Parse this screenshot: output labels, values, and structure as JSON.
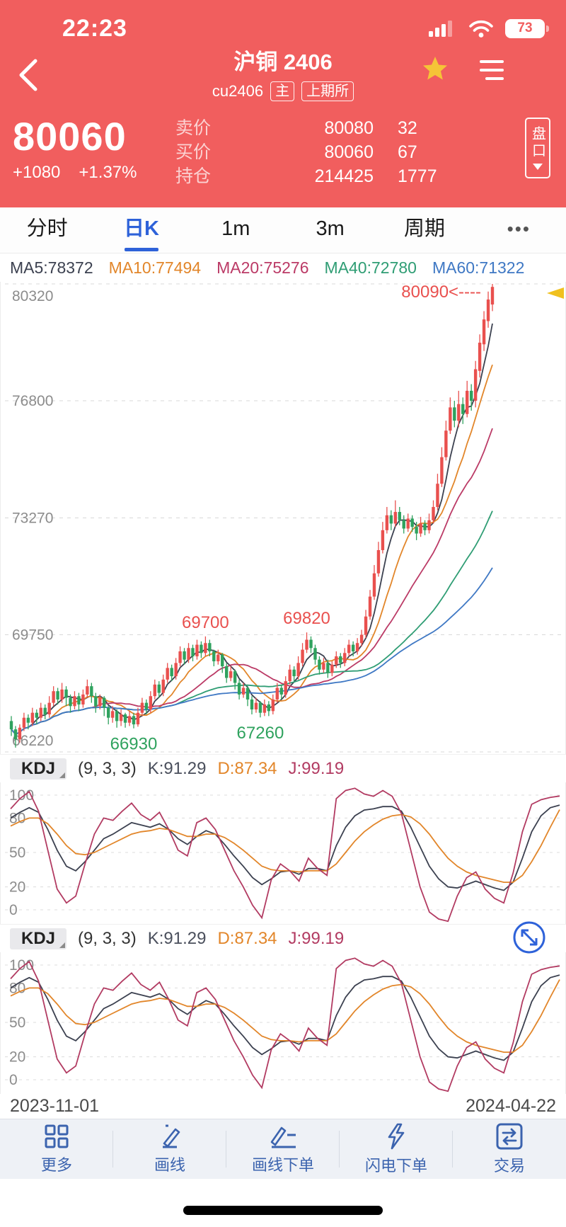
{
  "colors": {
    "header_red": "#f15e5e",
    "up": "#e9504e",
    "down": "#2fa25e",
    "accent_blue": "#2e62d9",
    "toolbar_blue": "#3b63ae",
    "axis_gray": "#8c8c8c",
    "marker_yellow": "#f0c11f"
  },
  "status_bar": {
    "time": "22:23",
    "battery": "73"
  },
  "nav": {
    "title": "沪铜 2406",
    "code": "cu2406",
    "badge_main": "主",
    "badge_exchange": "上期所"
  },
  "quote": {
    "last": "80060",
    "change": "+1080",
    "change_pct": "+1.37%",
    "rows": [
      {
        "label": "卖价",
        "value": "80080",
        "qty": "32"
      },
      {
        "label": "买价",
        "value": "80060",
        "qty": "67"
      },
      {
        "label": "持仓",
        "value": "214425",
        "qty": "1777"
      }
    ],
    "panel_button": "盘口"
  },
  "tabs": {
    "items": [
      "分时",
      "日K",
      "1m",
      "3m",
      "周期",
      "•••"
    ],
    "active_index": 1
  },
  "ma_legend": [
    {
      "label": "MA5:78372",
      "color": "#3c4150"
    },
    {
      "label": "MA10:77494",
      "color": "#e2862a"
    },
    {
      "label": "MA20:75276",
      "color": "#bb3a66"
    },
    {
      "label": "MA40:72780",
      "color": "#2f9d74"
    },
    {
      "label": "MA60:71322",
      "color": "#3f78c4"
    }
  ],
  "kdj_header": {
    "name": "KDJ",
    "params": "(9, 3, 3)",
    "k": "K:91.29",
    "d": "D:87.34",
    "j": "J:99.19"
  },
  "dates": {
    "start": "2023-11-01",
    "end": "2024-04-22"
  },
  "toolbar": {
    "items": [
      "更多",
      "画线",
      "画线下单",
      "闪电下单",
      "交易"
    ]
  },
  "chart_data": [
    {
      "type": "candlestick",
      "title": "沪铜2406 日K",
      "x_range": [
        "2023-11-01",
        "2024-04-22"
      ],
      "ylim": [
        66220,
        80320
      ],
      "yticks": [
        80320,
        76800,
        73270,
        69750,
        66220
      ],
      "grid": true,
      "up_color": "#e9504e",
      "down_color": "#2fa25e",
      "ma_windows": [
        5,
        10,
        20,
        40,
        60
      ],
      "ma_colors": [
        "#3c4150",
        "#e2862a",
        "#bb3a66",
        "#2f9d74",
        "#3f78c4"
      ],
      "annotations": [
        {
          "text": "80090<----",
          "index": 113,
          "value": 80090,
          "color": "#e9504e",
          "placement": "callout-left"
        },
        {
          "text": "69700",
          "index": 46,
          "value": 69700,
          "color": "#e9504e",
          "placement": "above"
        },
        {
          "text": "69820",
          "index": 70,
          "value": 69820,
          "color": "#e9504e",
          "placement": "above"
        },
        {
          "text": "66930",
          "index": 29,
          "value": 66930,
          "color": "#2fa25e",
          "placement": "below"
        },
        {
          "text": "67260",
          "index": 59,
          "value": 67260,
          "color": "#2fa25e",
          "placement": "below"
        }
      ],
      "candles": [
        [
          67150,
          66900,
          66700,
          67300
        ],
        [
          66900,
          66600,
          66350,
          67000
        ],
        [
          66600,
          66950,
          66500,
          67050
        ],
        [
          66950,
          67250,
          66850,
          67400
        ],
        [
          67250,
          67100,
          66900,
          67350
        ],
        [
          67100,
          67400,
          67000,
          67550
        ],
        [
          67400,
          67250,
          67050,
          67500
        ],
        [
          67250,
          67550,
          67150,
          67700
        ],
        [
          67550,
          67350,
          67200,
          67650
        ],
        [
          67350,
          67700,
          67250,
          67900
        ],
        [
          67700,
          68050,
          67600,
          68200
        ],
        [
          68050,
          67800,
          67650,
          68150
        ],
        [
          67800,
          68100,
          67700,
          68300
        ],
        [
          68100,
          67850,
          67600,
          68200
        ],
        [
          67850,
          67600,
          67400,
          67950
        ],
        [
          67600,
          67900,
          67500,
          68050
        ],
        [
          67900,
          67650,
          67450,
          68000
        ],
        [
          67650,
          67950,
          67550,
          68100
        ],
        [
          67950,
          68200,
          67850,
          68400
        ],
        [
          68200,
          67900,
          67700,
          68300
        ],
        [
          67900,
          67600,
          67400,
          68000
        ],
        [
          67600,
          67850,
          67500,
          67950
        ],
        [
          67850,
          67550,
          67300,
          67900
        ],
        [
          67550,
          67250,
          67050,
          67600
        ],
        [
          67250,
          67450,
          67100,
          67600
        ],
        [
          67450,
          67150,
          66950,
          67500
        ],
        [
          67150,
          67350,
          67000,
          67500
        ],
        [
          67350,
          67100,
          66950,
          67400
        ],
        [
          67100,
          67300,
          67000,
          67450
        ],
        [
          67300,
          67050,
          66930,
          67400
        ],
        [
          67050,
          67400,
          66980,
          67550
        ],
        [
          67400,
          67700,
          67300,
          67850
        ],
        [
          67700,
          67500,
          67350,
          67800
        ],
        [
          67500,
          67900,
          67400,
          68050
        ],
        [
          67900,
          68250,
          67800,
          68400
        ],
        [
          68250,
          68000,
          67850,
          68350
        ],
        [
          68000,
          68400,
          67900,
          68550
        ],
        [
          68400,
          68750,
          68300,
          68900
        ],
        [
          68750,
          68500,
          68350,
          68850
        ],
        [
          68500,
          68900,
          68400,
          69050
        ],
        [
          68900,
          69250,
          68800,
          69400
        ],
        [
          69250,
          69000,
          68850,
          69350
        ],
        [
          69000,
          69350,
          68900,
          69500
        ],
        [
          69350,
          69100,
          68950,
          69450
        ],
        [
          69100,
          69450,
          69000,
          69600
        ],
        [
          69450,
          69200,
          69050,
          69550
        ],
        [
          69200,
          69500,
          69100,
          69700
        ],
        [
          69500,
          69250,
          69100,
          69600
        ],
        [
          69250,
          68950,
          68800,
          69300
        ],
        [
          68950,
          69150,
          68850,
          69300
        ],
        [
          69150,
          68800,
          68600,
          69200
        ],
        [
          68800,
          68450,
          68300,
          68900
        ],
        [
          68450,
          68650,
          68350,
          68800
        ],
        [
          68650,
          68300,
          68100,
          68700
        ],
        [
          68300,
          67950,
          67800,
          68400
        ],
        [
          67950,
          68150,
          67850,
          68300
        ],
        [
          68150,
          67800,
          67600,
          68200
        ],
        [
          67800,
          67500,
          67350,
          67900
        ],
        [
          67500,
          67700,
          67400,
          67850
        ],
        [
          67700,
          67400,
          67260,
          67750
        ],
        [
          67400,
          67650,
          67300,
          67800
        ],
        [
          67650,
          67450,
          67300,
          67750
        ],
        [
          67450,
          67800,
          67350,
          67950
        ],
        [
          67800,
          68150,
          67700,
          68300
        ],
        [
          68150,
          67950,
          67800,
          68250
        ],
        [
          67950,
          68350,
          67850,
          68500
        ],
        [
          68350,
          68700,
          68250,
          68850
        ],
        [
          68700,
          68500,
          68350,
          68800
        ],
        [
          68500,
          68900,
          68400,
          69100
        ],
        [
          68900,
          69300,
          68800,
          69500
        ],
        [
          69300,
          69600,
          69200,
          69820
        ],
        [
          69600,
          69350,
          69200,
          69700
        ],
        [
          69350,
          69000,
          68850,
          69450
        ],
        [
          69000,
          68700,
          68550,
          69100
        ],
        [
          68700,
          68900,
          68600,
          69050
        ],
        [
          68900,
          68600,
          68450,
          69000
        ],
        [
          68600,
          68850,
          68500,
          68950
        ],
        [
          68850,
          69100,
          68750,
          69250
        ],
        [
          69100,
          68900,
          68750,
          69200
        ],
        [
          68900,
          69200,
          68800,
          69350
        ],
        [
          69200,
          69450,
          69100,
          69600
        ],
        [
          69450,
          69250,
          69100,
          69550
        ],
        [
          69250,
          69500,
          69150,
          69650
        ],
        [
          69500,
          69750,
          69400,
          69900
        ],
        [
          69750,
          70300,
          69650,
          70500
        ],
        [
          70300,
          70900,
          70200,
          71100
        ],
        [
          70900,
          71600,
          70800,
          71850
        ],
        [
          71600,
          72300,
          71500,
          72550
        ],
        [
          72300,
          72900,
          72200,
          73150
        ],
        [
          72900,
          73350,
          72800,
          73600
        ],
        [
          73350,
          73100,
          72900,
          73500
        ],
        [
          73100,
          73450,
          73000,
          73800
        ],
        [
          73450,
          73200,
          73050,
          73600
        ],
        [
          73200,
          72950,
          72800,
          73350
        ],
        [
          72950,
          73250,
          72850,
          73400
        ],
        [
          73250,
          73000,
          72850,
          73350
        ],
        [
          73000,
          72800,
          72600,
          73150
        ],
        [
          72800,
          73100,
          72700,
          73300
        ],
        [
          73100,
          72900,
          72750,
          73200
        ],
        [
          72900,
          73200,
          72800,
          73400
        ],
        [
          73200,
          73600,
          73100,
          73800
        ],
        [
          73600,
          74300,
          73500,
          74600
        ],
        [
          74300,
          75100,
          74200,
          75400
        ],
        [
          75100,
          75900,
          75000,
          76200
        ],
        [
          75900,
          76600,
          75800,
          76900
        ],
        [
          76600,
          76200,
          76000,
          76800
        ],
        [
          76200,
          76700,
          76000,
          77100
        ],
        [
          76700,
          76400,
          76100,
          76900
        ],
        [
          76400,
          77100,
          76300,
          77400
        ],
        [
          77100,
          76800,
          76500,
          77300
        ],
        [
          76800,
          77750,
          76600,
          78000
        ],
        [
          77700,
          78550,
          77500,
          78800
        ],
        [
          78500,
          79250,
          78300,
          79500
        ],
        [
          79200,
          79850,
          79000,
          80090
        ],
        [
          79700,
          80230,
          79500,
          80320
        ]
      ]
    },
    {
      "type": "line",
      "name": "KDJ",
      "params": "(9, 3, 3)",
      "current": {
        "K": 91.29,
        "D": 87.34,
        "J": 99.19
      },
      "ylim": [
        -12,
        108
      ],
      "yticks": [
        100,
        80,
        50,
        20,
        0
      ],
      "grid": true,
      "panels": 2,
      "series": [
        {
          "name": "K",
          "color": "#3c4150",
          "values": [
            80,
            85,
            89,
            85,
            70,
            52,
            38,
            34,
            42,
            52,
            62,
            66,
            71,
            76,
            74,
            72,
            75,
            70,
            62,
            57,
            64,
            69,
            66,
            57,
            47,
            38,
            28,
            22,
            27,
            33,
            34,
            31,
            36,
            36,
            34,
            56,
            72,
            82,
            87,
            88,
            90,
            90,
            86,
            72,
            55,
            38,
            27,
            20,
            19,
            22,
            25,
            22,
            19,
            17,
            24,
            45,
            68,
            82,
            89,
            91.3
          ]
        },
        {
          "name": "D",
          "color": "#e2862a",
          "values": [
            73,
            77,
            80,
            80,
            75,
            66,
            56,
            49,
            48,
            50,
            54,
            58,
            62,
            66,
            68,
            69,
            71,
            70,
            67,
            64,
            64,
            66,
            66,
            63,
            58,
            52,
            45,
            38,
            35,
            34,
            34,
            33,
            34,
            34,
            34,
            40,
            50,
            60,
            68,
            74,
            79,
            82,
            83,
            81,
            75,
            66,
            55,
            45,
            38,
            33,
            30,
            28,
            26,
            24,
            24,
            30,
            42,
            56,
            72,
            87.3
          ]
        },
        {
          "name": "J",
          "color": "#b23b62",
          "values": [
            88,
            97,
            103,
            86,
            52,
            18,
            6,
            12,
            40,
            66,
            80,
            78,
            86,
            93,
            83,
            78,
            85,
            70,
            52,
            47,
            76,
            80,
            70,
            52,
            34,
            20,
            4,
            -7,
            26,
            40,
            34,
            25,
            45,
            36,
            30,
            97,
            104,
            106,
            101,
            99,
            104,
            99,
            84,
            52,
            20,
            -2,
            -8,
            -10,
            12,
            28,
            33,
            18,
            10,
            6,
            32,
            68,
            92,
            96,
            98,
            99.2
          ]
        }
      ]
    }
  ]
}
